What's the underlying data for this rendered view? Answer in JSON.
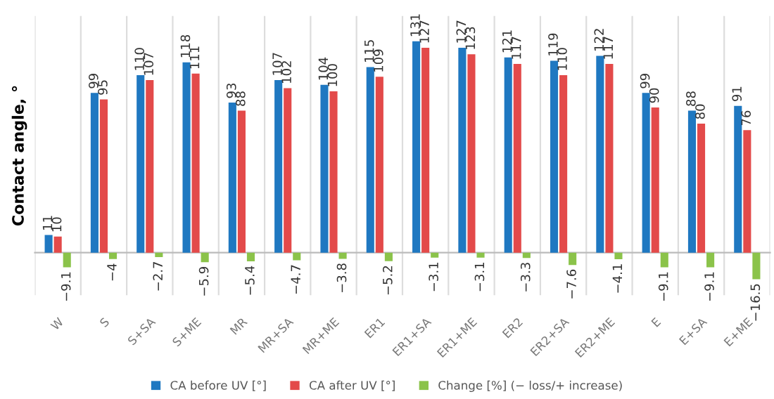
{
  "chart_data": {
    "type": "bar",
    "ylabel": "Contact angle, °",
    "categories": [
      "W",
      "S",
      "S+SA",
      "S+ME",
      "MR",
      "MR+SA",
      "MR+ME",
      "ER1",
      "ER1+SA",
      "ER1+ME",
      "ER2",
      "ER2+SA",
      "ER2+ME",
      "E",
      "E+SA",
      "E+ME"
    ],
    "series": [
      {
        "name": "CA before UV [°]",
        "color": "#1f78c1",
        "values": [
          11,
          99,
          110,
          118,
          93,
          107,
          104,
          115,
          131,
          127,
          121,
          119,
          122,
          99,
          88,
          91
        ],
        "value_labels": [
          "11",
          "99",
          "110",
          "118",
          "93",
          "107",
          "104",
          "115",
          "131",
          "127",
          "121",
          "119",
          "122",
          "99",
          "88",
          "91"
        ]
      },
      {
        "name": "CA after UV [°]",
        "color": "#e34a4a",
        "values": [
          10,
          95,
          107,
          111,
          88,
          102,
          100,
          109,
          127,
          123,
          117,
          110,
          117,
          90,
          80,
          76
        ],
        "value_labels": [
          "10",
          "95",
          "107",
          "111",
          "88",
          "102",
          "100",
          "109",
          "127",
          "123",
          "117",
          "110",
          "117",
          "90",
          "80",
          "76"
        ]
      },
      {
        "name": "Change [%] (− loss/+ increase)",
        "color": "#8bc34a",
        "values": [
          -9.1,
          -4,
          -2.7,
          -5.9,
          -5.4,
          -4.7,
          -3.8,
          -5.2,
          -3.1,
          -3.1,
          -3.3,
          -7.6,
          -4.1,
          -9.1,
          -9.1,
          -16.5
        ],
        "value_labels": [
          "−9.1",
          "−4",
          "−2.7",
          "−5.9",
          "−5.4",
          "−4.7",
          "−3.8",
          "−5.2",
          "−3.1",
          "−3.1",
          "−3.3",
          "−7.6",
          "−4.1",
          "−9.1",
          "−9.1",
          "−16.5"
        ]
      }
    ],
    "grid": "x",
    "legend": "bottom"
  }
}
